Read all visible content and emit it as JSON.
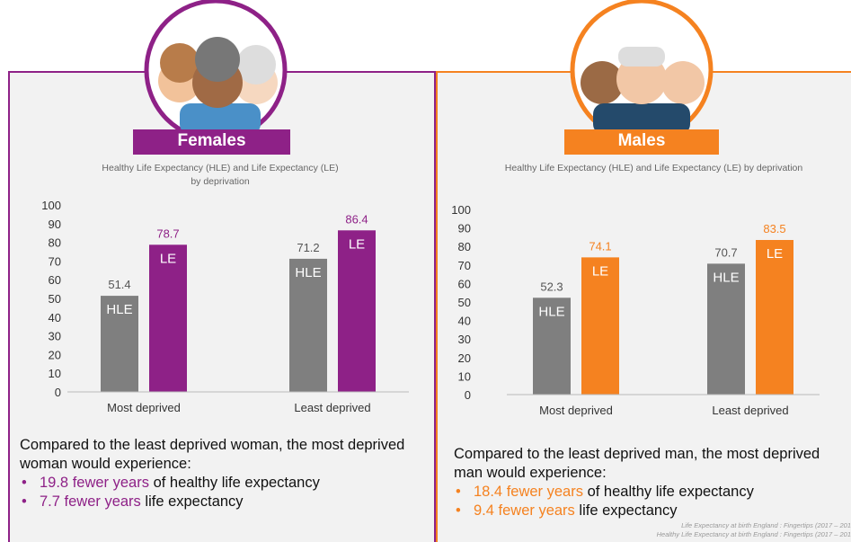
{
  "panels": [
    {
      "label": "Females",
      "intro": "Compared to the least deprived woman, the most deprived woman would experience:",
      "bullets": [
        {
          "highlight": "19.8 fewer years",
          "rest": "of healthy life expectancy"
        },
        {
          "highlight": "7.7 fewer years",
          "rest": "life expectancy"
        }
      ]
    },
    {
      "label": "Males",
      "intro": "Compared to the least deprived man, the most deprived man would experience:",
      "bullets": [
        {
          "highlight": "18.4 fewer years",
          "rest": "of healthy life expectancy"
        },
        {
          "highlight": "9.4 fewer years",
          "rest": "life expectancy"
        }
      ]
    }
  ],
  "chart_data": [
    {
      "type": "bar",
      "title": "Healthy Life Expectancy (HLE) and Life Expectancy (LE) by deprivation",
      "categories": [
        "Most deprived",
        "Least deprived"
      ],
      "series": [
        {
          "name": "HLE",
          "color": "#7f7f7f",
          "values": [
            51.4,
            71.2
          ]
        },
        {
          "name": "LE",
          "color": "#8e2187",
          "values": [
            78.7,
            86.4
          ]
        }
      ],
      "ylim": [
        0,
        100
      ],
      "yticks": [
        0,
        10,
        20,
        30,
        40,
        50,
        60,
        70,
        80,
        90,
        100
      ]
    },
    {
      "type": "bar",
      "title": "Healthy Life Expectancy (HLE) and Life Expectancy (LE) by deprivation",
      "categories": [
        "Most deprived",
        "Least deprived"
      ],
      "series": [
        {
          "name": "HLE",
          "color": "#7f7f7f",
          "values": [
            52.3,
            70.7
          ]
        },
        {
          "name": "LE",
          "color": "#f58220",
          "values": [
            74.1,
            83.5
          ]
        }
      ],
      "ylim": [
        0,
        100
      ],
      "yticks": [
        0,
        10,
        20,
        30,
        40,
        50,
        60,
        70,
        80,
        90,
        100
      ]
    }
  ],
  "source": [
    "Life Expectancy at birth England : Fingertips  (2017 – 201",
    "Healthy Life Expectancy at birth England : Fingertips  (2017 – 201"
  ]
}
